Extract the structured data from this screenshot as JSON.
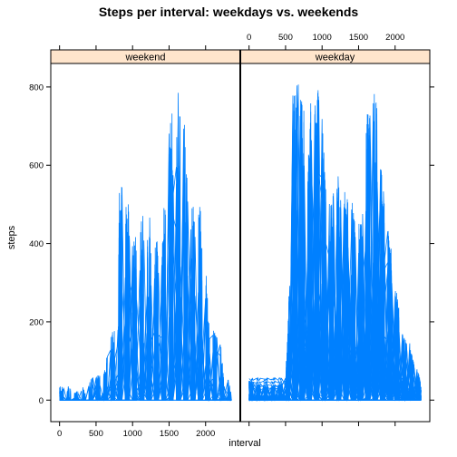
{
  "chart_data": {
    "type": "line",
    "title": "Steps per interval: weekdays vs. weekends",
    "xlabel": "interval",
    "ylabel": "steps",
    "xlim": [
      -120,
      2475
    ],
    "ylim": [
      -55,
      860
    ],
    "xticks": [
      0,
      500,
      1000,
      1500,
      2000
    ],
    "yticks": [
      0,
      200,
      400,
      600,
      800
    ],
    "x_tick_labels": [
      "0",
      "500",
      "1000",
      "1500",
      "2000"
    ],
    "y_tick_labels": [
      "0",
      "200",
      "400",
      "600",
      "800"
    ],
    "line_color": "#0080ff",
    "strip_color": "#ffe5cc",
    "panels": [
      {
        "strip": "weekend",
        "peak_steps": 785,
        "series_envelope": {
          "x": [
            0,
            100,
            200,
            300,
            400,
            500,
            600,
            700,
            750,
            800,
            850,
            900,
            950,
            1000,
            1050,
            1100,
            1150,
            1200,
            1250,
            1300,
            1350,
            1400,
            1450,
            1500,
            1550,
            1600,
            1650,
            1700,
            1750,
            1800,
            1850,
            1900,
            1950,
            2000,
            2050,
            2100,
            2150,
            2200,
            2250,
            2300,
            2355
          ],
          "max": [
            50,
            40,
            20,
            30,
            55,
            65,
            70,
            170,
            180,
            540,
            550,
            515,
            500,
            400,
            430,
            525,
            500,
            540,
            460,
            420,
            440,
            500,
            530,
            690,
            780,
            785,
            770,
            750,
            560,
            500,
            510,
            530,
            520,
            360,
            200,
            180,
            170,
            175,
            50,
            60,
            20
          ]
        }
      },
      {
        "strip": "weekday",
        "peak_steps": 806,
        "series_envelope": {
          "x": [
            0,
            100,
            200,
            300,
            400,
            500,
            550,
            600,
            650,
            700,
            750,
            800,
            850,
            900,
            950,
            1000,
            1050,
            1100,
            1150,
            1200,
            1250,
            1300,
            1350,
            1400,
            1450,
            1500,
            1550,
            1600,
            1650,
            1700,
            1750,
            1800,
            1850,
            1900,
            1950,
            2000,
            2050,
            2100,
            2150,
            2200,
            2250,
            2300,
            2355
          ],
          "max": [
            50,
            45,
            40,
            35,
            40,
            60,
            300,
            780,
            806,
            790,
            770,
            560,
            800,
            795,
            795,
            720,
            560,
            520,
            540,
            620,
            560,
            540,
            530,
            540,
            470,
            460,
            470,
            700,
            780,
            790,
            780,
            620,
            540,
            460,
            410,
            300,
            250,
            180,
            150,
            160,
            100,
            90,
            40
          ]
        }
      }
    ]
  }
}
